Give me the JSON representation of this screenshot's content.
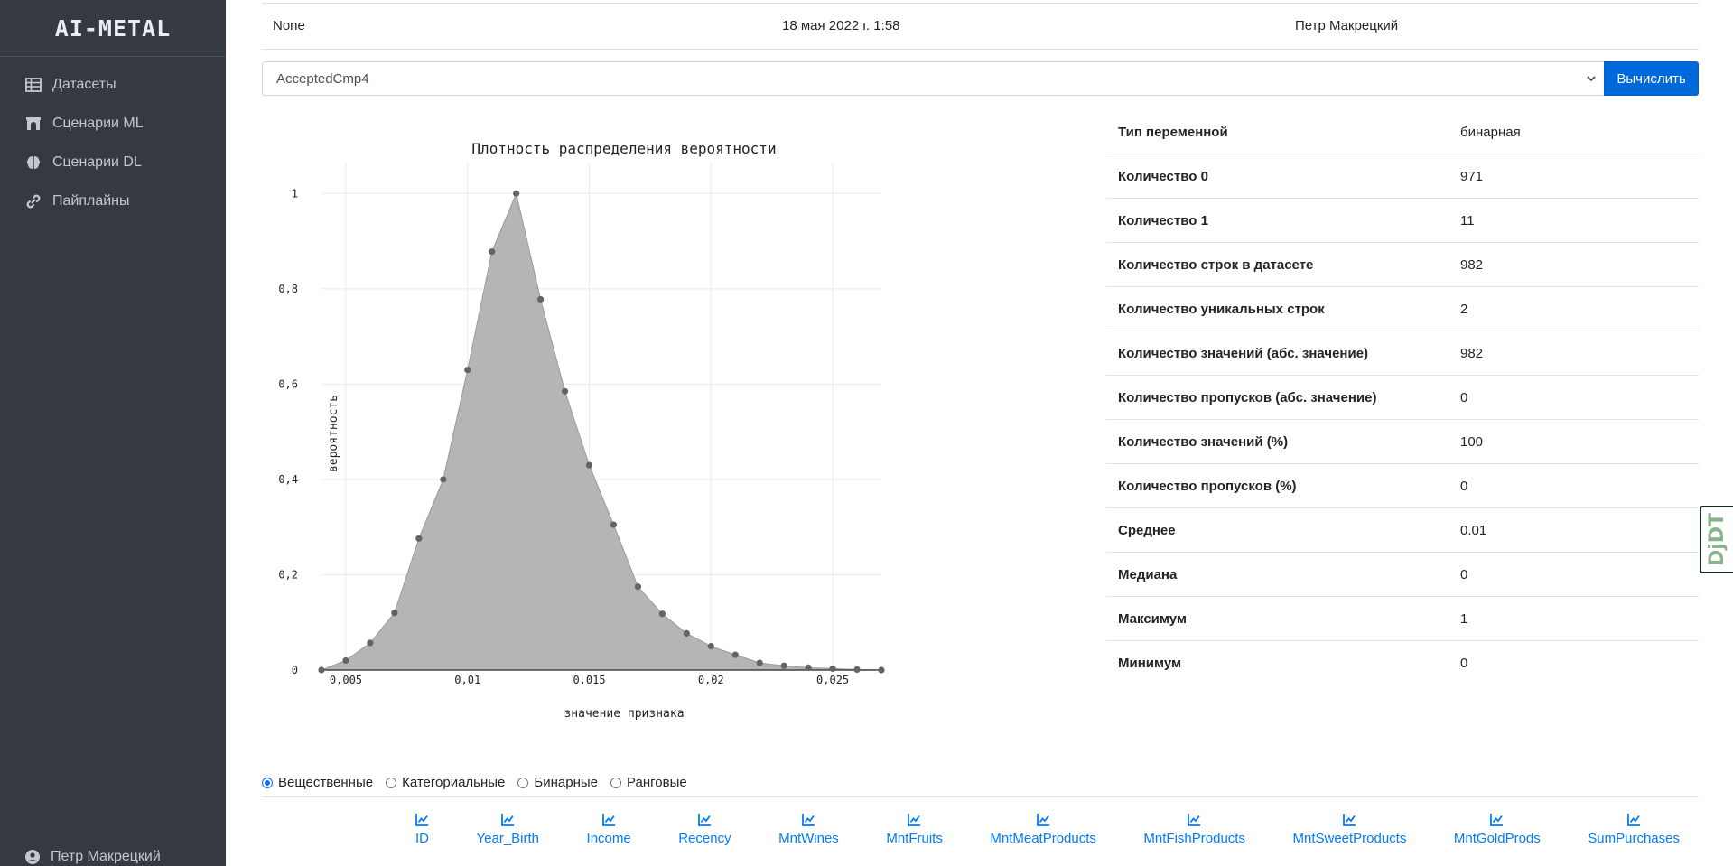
{
  "sidebar": {
    "brand": "AI-METAL",
    "items": [
      {
        "label": "Датасеты",
        "icon": "table-icon"
      },
      {
        "label": "Сценарии ML",
        "icon": "archway-icon"
      },
      {
        "label": "Сценарии DL",
        "icon": "brain-icon"
      },
      {
        "label": "Пайплайны",
        "icon": "link-icon"
      }
    ],
    "user": "Петр Макрецкий"
  },
  "info_row": {
    "name": "None",
    "date": "18 мая 2022 г. 1:58",
    "author": "Петр Макрецкий"
  },
  "column_select": {
    "value": "AcceptedCmp4"
  },
  "calc_button": "Вычислить",
  "chart_data": {
    "type": "area",
    "title": "Плотность распределения вероятности",
    "xlabel": "значение признака",
    "ylabel": "вероятность",
    "x": [
      0.004,
      0.005,
      0.006,
      0.007,
      0.008,
      0.009,
      0.01,
      0.011,
      0.012,
      0.013,
      0.014,
      0.015,
      0.016,
      0.017,
      0.018,
      0.019,
      0.02,
      0.021,
      0.022,
      0.023,
      0.024,
      0.025,
      0.026,
      0.027
    ],
    "y": [
      0.0,
      0.02,
      0.057,
      0.12,
      0.276,
      0.4,
      0.63,
      0.878,
      1.0,
      0.778,
      0.585,
      0.43,
      0.305,
      0.175,
      0.118,
      0.077,
      0.05,
      0.032,
      0.015,
      0.009,
      0.005,
      0.003,
      0.001,
      0.0
    ],
    "xlim": [
      0.004,
      0.027
    ],
    "ylim": [
      0,
      1.065
    ],
    "xticks": [
      0.005,
      0.01,
      0.015,
      0.02,
      0.025
    ],
    "xtick_labels": [
      "0,005",
      "0,01",
      "0,015",
      "0,02",
      "0,025"
    ],
    "yticks": [
      0,
      0.2,
      0.4,
      0.6,
      0.8,
      1
    ],
    "ytick_labels": [
      "0",
      "0,2",
      "0,4",
      "0,6",
      "0,8",
      "1"
    ],
    "grid": true,
    "fill_color": "#b5b5b5",
    "marker_color": "#636363"
  },
  "stats": [
    {
      "key": "Тип переменной",
      "value": "бинарная"
    },
    {
      "key": "Количество 0",
      "value": "971"
    },
    {
      "key": "Количество 1",
      "value": "11"
    },
    {
      "key": "Количество строк в датасете",
      "value": "982"
    },
    {
      "key": "Количество уникальных строк",
      "value": "2"
    },
    {
      "key": "Количество значений (абс. значение)",
      "value": "982"
    },
    {
      "key": "Количество пропусков (абс. значение)",
      "value": "0"
    },
    {
      "key": "Количество значений (%)",
      "value": "100"
    },
    {
      "key": "Количество пропусков (%)",
      "value": "0"
    },
    {
      "key": "Среднее",
      "value": "0.01"
    },
    {
      "key": "Медиана",
      "value": "0"
    },
    {
      "key": "Максимум",
      "value": "1"
    },
    {
      "key": "Минимум",
      "value": "0"
    }
  ],
  "radios": [
    {
      "label": "Вещественные",
      "checked": true
    },
    {
      "label": "Категориальные",
      "checked": false
    },
    {
      "label": "Бинарные",
      "checked": false
    },
    {
      "label": "Ранговые",
      "checked": false
    }
  ],
  "fields": [
    "ID",
    "Year_Birth",
    "Income",
    "Recency",
    "MntWines",
    "MntFruits",
    "MntMeatProducts",
    "MntFishProducts",
    "MntSweetProducts",
    "MntGoldProds",
    "SumPurchases"
  ],
  "djdt_label": "DjDT",
  "colors": {
    "sidebar_bg": "#343a40",
    "primary": "#0069d9",
    "link": "#007bff"
  }
}
